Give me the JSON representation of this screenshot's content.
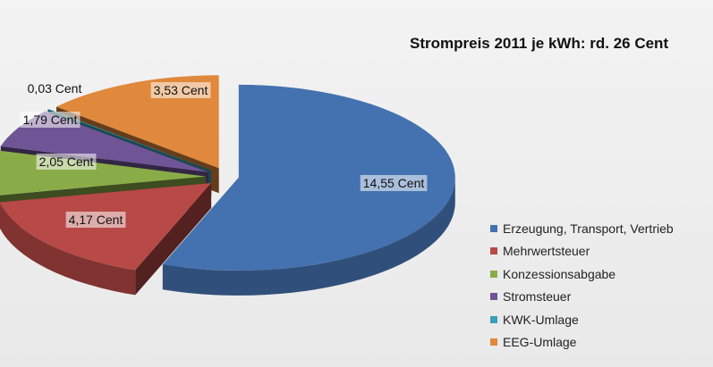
{
  "chart_data": {
    "type": "pie",
    "title": "Strompreis 2011 je kWh: rd. 26 Cent",
    "categories": [
      "Erzeugung, Transport, Vertrieb",
      "Mehrwertsteuer",
      "Konzessionsabgabe",
      "Stromsteuer",
      "KWK-Umlage",
      "EEG-Umlage"
    ],
    "values": [
      14.55,
      4.17,
      2.05,
      1.79,
      0.03,
      3.53
    ],
    "data_labels": [
      "14,55 Cent",
      "4,17 Cent",
      "2,05 Cent",
      "1,79 Cent",
      "0,03 Cent",
      "3,53 Cent"
    ],
    "colors": [
      "#4472b0",
      "#b74946",
      "#8aac48",
      "#6f5596",
      "#3d9fb5",
      "#e0883b"
    ],
    "exploded": true,
    "legend_position": "right"
  }
}
